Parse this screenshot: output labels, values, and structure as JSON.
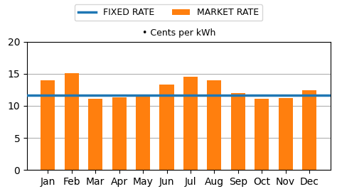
{
  "chart_data": {
    "type": "bar",
    "subtitle": "• Cents per kWh",
    "categories": [
      "Jan",
      "Feb",
      "Mar",
      "Apr",
      "May",
      "Jun",
      "Jul",
      "Aug",
      "Sep",
      "Oct",
      "Nov",
      "Dec"
    ],
    "series": [
      {
        "name": "FIXED RATE",
        "type": "line",
        "value": 11.6
      },
      {
        "name": "MARKET RATE",
        "type": "bar",
        "values": [
          14.0,
          15.1,
          11.1,
          11.3,
          11.6,
          13.3,
          14.5,
          14.0,
          12.0,
          11.1,
          11.2,
          12.4
        ]
      }
    ],
    "ylim": [
      0,
      20
    ],
    "yticks": [
      0,
      5,
      10,
      15,
      20
    ],
    "grid": true,
    "legend": "upper center"
  }
}
